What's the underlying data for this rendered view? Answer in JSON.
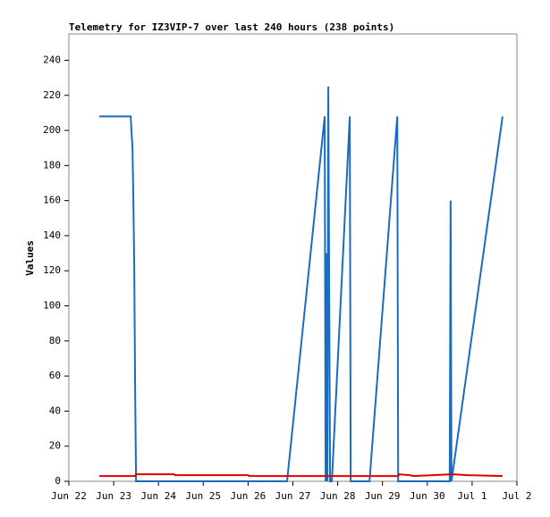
{
  "chart_data": {
    "type": "line",
    "title": "Telemetry for IZ3VIP-7 over last 240 hours (238 points)",
    "y_label": "Values",
    "xlim": [
      0,
      10
    ],
    "xticks": [
      {
        "value": 0,
        "label": "Jun 22"
      },
      {
        "value": 1,
        "label": "Jun 23"
      },
      {
        "value": 2,
        "label": "Jun 24"
      },
      {
        "value": 3,
        "label": "Jun 25"
      },
      {
        "value": 4,
        "label": "Jun 26"
      },
      {
        "value": 5,
        "label": "Jun 27"
      },
      {
        "value": 6,
        "label": "Jun 28"
      },
      {
        "value": 7,
        "label": "Jun 29"
      },
      {
        "value": 8,
        "label": "Jun 30"
      },
      {
        "value": 9,
        "label": "Jul 1"
      },
      {
        "value": 10,
        "label": "Jul 2"
      }
    ],
    "ylim": [
      0,
      255
    ],
    "yticks": [
      0,
      20,
      40,
      60,
      80,
      100,
      120,
      140,
      160,
      180,
      200,
      220,
      240
    ],
    "series": [
      {
        "color": "#1a6cc0",
        "x": [
          0.68,
          1.38,
          1.42,
          1.44,
          1.46,
          1.48,
          1.5,
          4.87,
          5.71,
          5.73,
          5.75,
          5.77,
          5.79,
          5.83,
          5.87,
          6.27,
          6.29,
          6.71,
          7.33,
          7.35,
          8.5,
          8.52,
          8.54,
          9.68
        ],
        "values": [
          208,
          208,
          190,
          160,
          120,
          50,
          0,
          0,
          208,
          0,
          130,
          0,
          225,
          0,
          0,
          208,
          0,
          0,
          208,
          0,
          0,
          160,
          0,
          208
        ]
      },
      {
        "color": "#e00000",
        "x": [
          0.68,
          1.48,
          1.5,
          2.35,
          2.37,
          4.0,
          4.02,
          7.35,
          7.37,
          7.6,
          7.7,
          8.55,
          8.9,
          9.68
        ],
        "values": [
          3,
          3,
          4,
          4,
          3.5,
          3.5,
          3,
          3,
          4,
          3.5,
          3,
          4,
          3.5,
          3
        ]
      }
    ]
  }
}
